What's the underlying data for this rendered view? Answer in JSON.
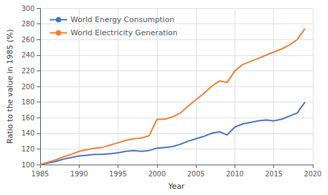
{
  "chart_data": {
    "type": "line",
    "xlabel": "Year",
    "ylabel": "Ratio to the value in 1985 (%)",
    "x": [
      1985,
      1986,
      1987,
      1988,
      1989,
      1990,
      1991,
      1992,
      1993,
      1994,
      1995,
      1996,
      1997,
      1998,
      1999,
      2000,
      2001,
      2002,
      2003,
      2004,
      2005,
      2006,
      2007,
      2008,
      2009,
      2010,
      2011,
      2012,
      2013,
      2014,
      2015,
      2016,
      2017,
      2018,
      2019
    ],
    "series": [
      {
        "name": "World Energy Consumption",
        "color": "#4472C4",
        "values": [
          100,
          102,
          104,
          107,
          109,
          111,
          112,
          113,
          113,
          114,
          115,
          117,
          118,
          117,
          118,
          121,
          122,
          123,
          126,
          130,
          133,
          136,
          140,
          142,
          138,
          148,
          152,
          154,
          156,
          157,
          156,
          158,
          162,
          166,
          180
        ]
      },
      {
        "name": "World Electricity Generation",
        "color": "#ED7D31",
        "values": [
          100,
          103,
          106,
          110,
          113,
          117,
          119,
          121,
          122,
          125,
          128,
          131,
          133,
          134,
          137,
          158,
          158,
          161,
          166,
          175,
          183,
          191,
          200,
          207,
          205,
          220,
          228,
          232,
          236,
          240,
          244,
          248,
          253,
          260,
          274
        ]
      }
    ],
    "xlim": [
      1985,
      2020
    ],
    "ylim": [
      100,
      300
    ],
    "xticks": [
      1985,
      1990,
      1995,
      2000,
      2005,
      2010,
      2015,
      2020
    ],
    "yticks": [
      100,
      120,
      140,
      160,
      180,
      200,
      220,
      240,
      260,
      280,
      300
    ],
    "grid": true,
    "legend": "upper left"
  }
}
